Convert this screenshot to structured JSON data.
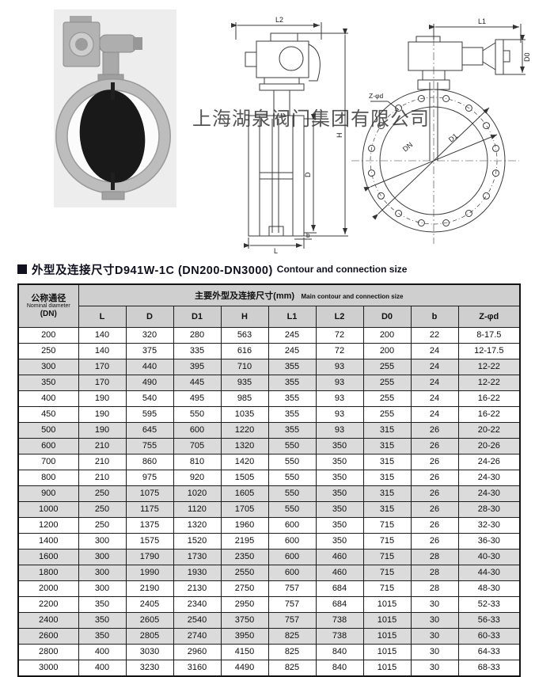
{
  "watermark": "上海湖泉阀门集团有限公司",
  "title": {
    "zh": "外型及连接尺寸D941W-1C (DN200-DN3000)",
    "en": "Contour and connection size"
  },
  "figures": {
    "side_labels": {
      "l2": "L2",
      "h": "H",
      "d": "D",
      "l": "L",
      "b": "b"
    },
    "front_labels": {
      "l1": "L1",
      "d0": "D0",
      "zd": "Z-φd",
      "dn": "DN",
      "d1": "D1"
    }
  },
  "table": {
    "header": {
      "col1_zh": "公称通径",
      "col1_en": "Nominal diameter",
      "col1_unit": "(DN)",
      "group_zh": "主要外型及连接尺寸(mm)",
      "group_en": "Main contour and connection size",
      "columns": [
        "L",
        "D",
        "D1",
        "H",
        "L1",
        "L2",
        "D0",
        "b",
        "Z-φd"
      ]
    },
    "rows": [
      [
        "200",
        "140",
        "320",
        "280",
        "563",
        "245",
        "72",
        "200",
        "22",
        "8-17.5"
      ],
      [
        "250",
        "140",
        "375",
        "335",
        "616",
        "245",
        "72",
        "200",
        "24",
        "12-17.5"
      ],
      [
        "300",
        "170",
        "440",
        "395",
        "710",
        "355",
        "93",
        "255",
        "24",
        "12-22"
      ],
      [
        "350",
        "170",
        "490",
        "445",
        "935",
        "355",
        "93",
        "255",
        "24",
        "12-22"
      ],
      [
        "400",
        "190",
        "540",
        "495",
        "985",
        "355",
        "93",
        "255",
        "24",
        "16-22"
      ],
      [
        "450",
        "190",
        "595",
        "550",
        "1035",
        "355",
        "93",
        "255",
        "24",
        "16-22"
      ],
      [
        "500",
        "190",
        "645",
        "600",
        "1220",
        "355",
        "93",
        "315",
        "26",
        "20-22"
      ],
      [
        "600",
        "210",
        "755",
        "705",
        "1320",
        "550",
        "350",
        "315",
        "26",
        "20-26"
      ],
      [
        "700",
        "210",
        "860",
        "810",
        "1420",
        "550",
        "350",
        "315",
        "26",
        "24-26"
      ],
      [
        "800",
        "210",
        "975",
        "920",
        "1505",
        "550",
        "350",
        "315",
        "26",
        "24-30"
      ],
      [
        "900",
        "250",
        "1075",
        "1020",
        "1605",
        "550",
        "350",
        "315",
        "26",
        "24-30"
      ],
      [
        "1000",
        "250",
        "1175",
        "1120",
        "1705",
        "550",
        "350",
        "315",
        "26",
        "28-30"
      ],
      [
        "1200",
        "250",
        "1375",
        "1320",
        "1960",
        "600",
        "350",
        "715",
        "26",
        "32-30"
      ],
      [
        "1400",
        "300",
        "1575",
        "1520",
        "2195",
        "600",
        "350",
        "715",
        "26",
        "36-30"
      ],
      [
        "1600",
        "300",
        "1790",
        "1730",
        "2350",
        "600",
        "460",
        "715",
        "28",
        "40-30"
      ],
      [
        "1800",
        "300",
        "1990",
        "1930",
        "2550",
        "600",
        "460",
        "715",
        "28",
        "44-30"
      ],
      [
        "2000",
        "300",
        "2190",
        "2130",
        "2750",
        "757",
        "684",
        "715",
        "28",
        "48-30"
      ],
      [
        "2200",
        "350",
        "2405",
        "2340",
        "2950",
        "757",
        "684",
        "1015",
        "30",
        "52-33"
      ],
      [
        "2400",
        "350",
        "2605",
        "2540",
        "3750",
        "757",
        "738",
        "1015",
        "30",
        "56-33"
      ],
      [
        "2600",
        "350",
        "2805",
        "2740",
        "3950",
        "825",
        "738",
        "1015",
        "30",
        "60-33"
      ],
      [
        "2800",
        "400",
        "3030",
        "2960",
        "4150",
        "825",
        "840",
        "1015",
        "30",
        "64-33"
      ],
      [
        "3000",
        "400",
        "3230",
        "3160",
        "4490",
        "825",
        "840",
        "1015",
        "30",
        "68-33"
      ]
    ]
  }
}
